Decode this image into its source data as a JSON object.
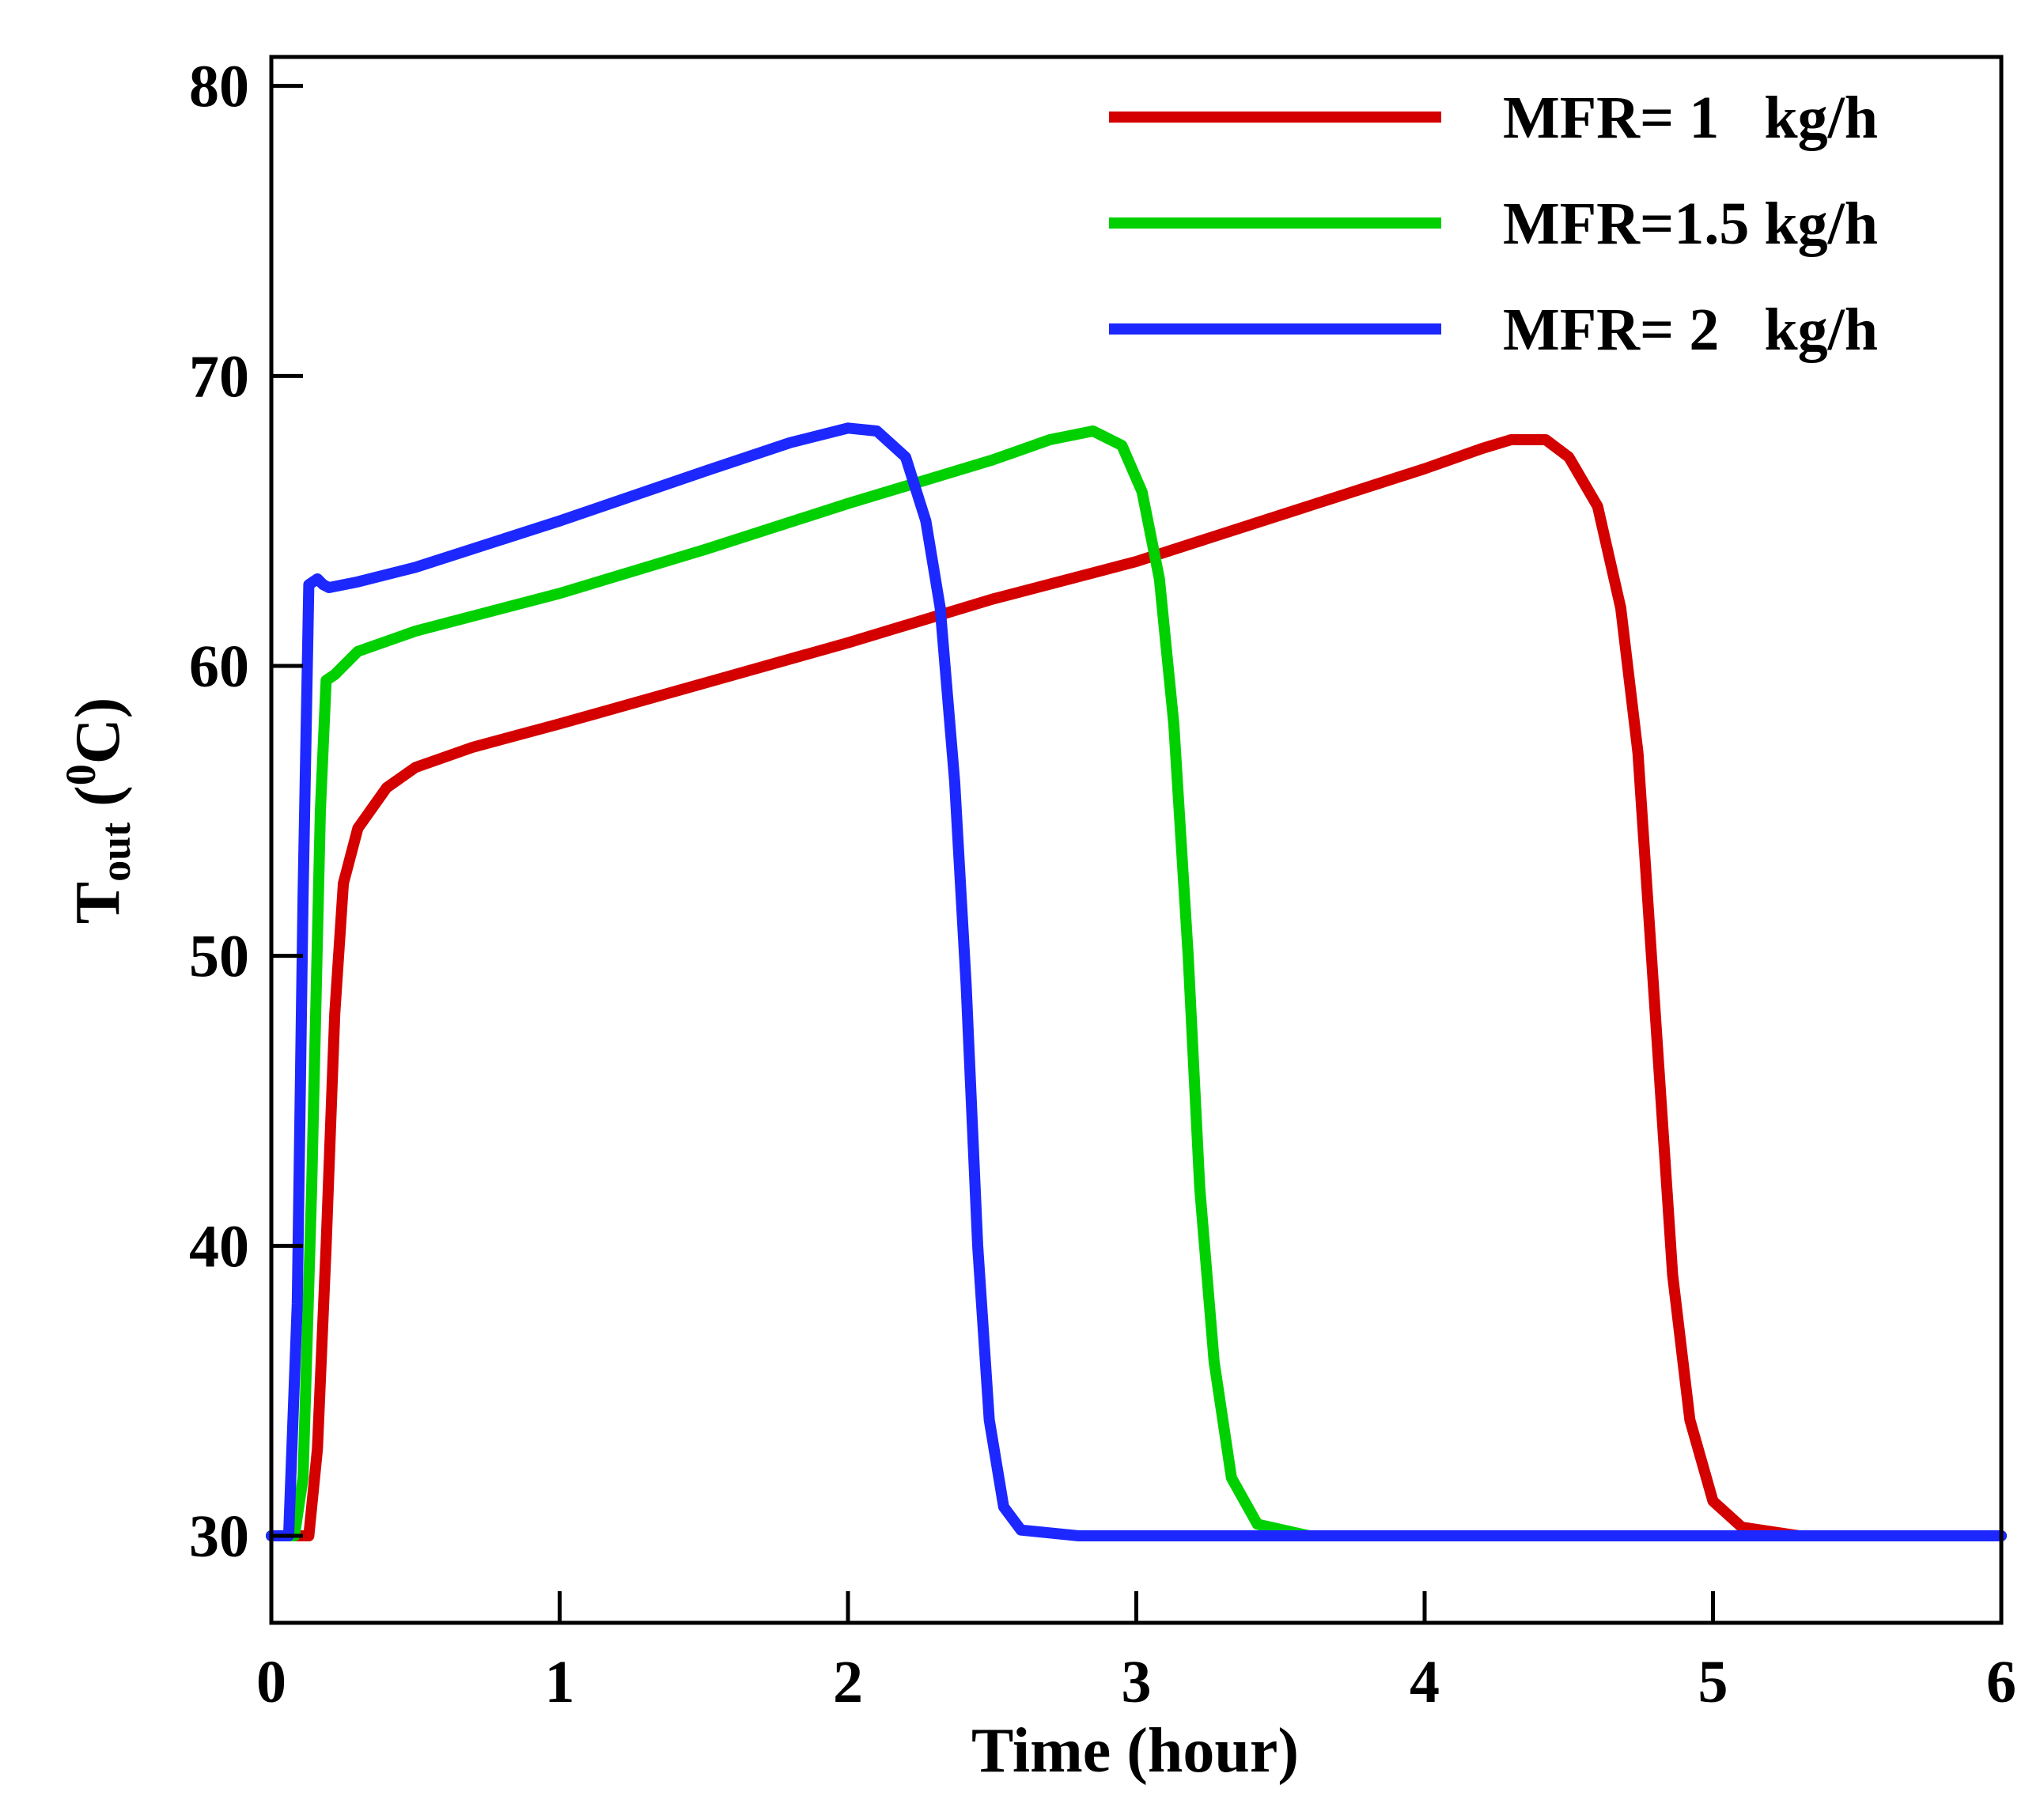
{
  "chart_data": {
    "type": "line",
    "title": "",
    "xlabel": "Time (hour)",
    "ylabel": {
      "main": "T",
      "subscript": "out",
      "unit_open": " (",
      "unit_superscript": "0",
      "unit_rest": "C)"
    },
    "xlim": [
      0,
      6
    ],
    "ylim": [
      27,
      81
    ],
    "xticks": [
      0,
      1,
      2,
      3,
      4,
      5,
      6
    ],
    "yticks": [
      30,
      40,
      50,
      60,
      70,
      80
    ],
    "grid": false,
    "legend_position": "top-right",
    "series": [
      {
        "name": "MFR= 1   kg/h",
        "color": "#d40000",
        "points": [
          [
            0,
            30
          ],
          [
            0.1,
            30
          ],
          [
            0.13,
            30
          ],
          [
            0.16,
            33
          ],
          [
            0.19,
            40
          ],
          [
            0.22,
            48
          ],
          [
            0.25,
            52.5
          ],
          [
            0.3,
            54.4
          ],
          [
            0.4,
            55.8
          ],
          [
            0.5,
            56.5
          ],
          [
            0.7,
            57.2
          ],
          [
            1,
            58
          ],
          [
            1.5,
            59.4
          ],
          [
            2,
            60.8
          ],
          [
            2.5,
            62.3
          ],
          [
            3,
            63.6
          ],
          [
            3.5,
            65.2
          ],
          [
            4,
            66.8
          ],
          [
            4.2,
            67.5
          ],
          [
            4.3,
            67.8
          ],
          [
            4.42,
            67.8
          ],
          [
            4.5,
            67.2
          ],
          [
            4.6,
            65.5
          ],
          [
            4.68,
            62
          ],
          [
            4.74,
            57
          ],
          [
            4.8,
            48
          ],
          [
            4.86,
            39
          ],
          [
            4.92,
            34
          ],
          [
            5,
            31.2
          ],
          [
            5.1,
            30.3
          ],
          [
            5.3,
            30
          ],
          [
            6,
            30
          ]
        ]
      },
      {
        "name": "MFR=1.5 kg/h",
        "color": "#00d000",
        "points": [
          [
            0,
            30
          ],
          [
            0.08,
            30
          ],
          [
            0.11,
            32
          ],
          [
            0.14,
            42
          ],
          [
            0.17,
            55
          ],
          [
            0.19,
            59.5
          ],
          [
            0.22,
            59.7
          ],
          [
            0.3,
            60.5
          ],
          [
            0.5,
            61.2
          ],
          [
            1,
            62.5
          ],
          [
            1.5,
            64
          ],
          [
            2,
            65.6
          ],
          [
            2.5,
            67.1
          ],
          [
            2.7,
            67.8
          ],
          [
            2.85,
            68.1
          ],
          [
            2.95,
            67.6
          ],
          [
            3.02,
            66
          ],
          [
            3.08,
            63
          ],
          [
            3.13,
            58
          ],
          [
            3.18,
            50
          ],
          [
            3.22,
            42
          ],
          [
            3.27,
            36
          ],
          [
            3.33,
            32
          ],
          [
            3.42,
            30.4
          ],
          [
            3.6,
            30
          ],
          [
            6,
            30
          ]
        ]
      },
      {
        "name": "MFR= 2   kg/h",
        "color": "#1c28ff",
        "points": [
          [
            0,
            30
          ],
          [
            0.06,
            30
          ],
          [
            0.09,
            38
          ],
          [
            0.11,
            52
          ],
          [
            0.13,
            62.8
          ],
          [
            0.16,
            63
          ],
          [
            0.18,
            62.8
          ],
          [
            0.2,
            62.7
          ],
          [
            0.3,
            62.9
          ],
          [
            0.5,
            63.4
          ],
          [
            1,
            65
          ],
          [
            1.5,
            66.7
          ],
          [
            1.8,
            67.7
          ],
          [
            2,
            68.2
          ],
          [
            2.1,
            68.1
          ],
          [
            2.2,
            67.2
          ],
          [
            2.27,
            65
          ],
          [
            2.32,
            62
          ],
          [
            2.37,
            56
          ],
          [
            2.41,
            49
          ],
          [
            2.45,
            40
          ],
          [
            2.49,
            34
          ],
          [
            2.54,
            31
          ],
          [
            2.6,
            30.2
          ],
          [
            2.8,
            30
          ],
          [
            6,
            30
          ]
        ]
      }
    ]
  }
}
